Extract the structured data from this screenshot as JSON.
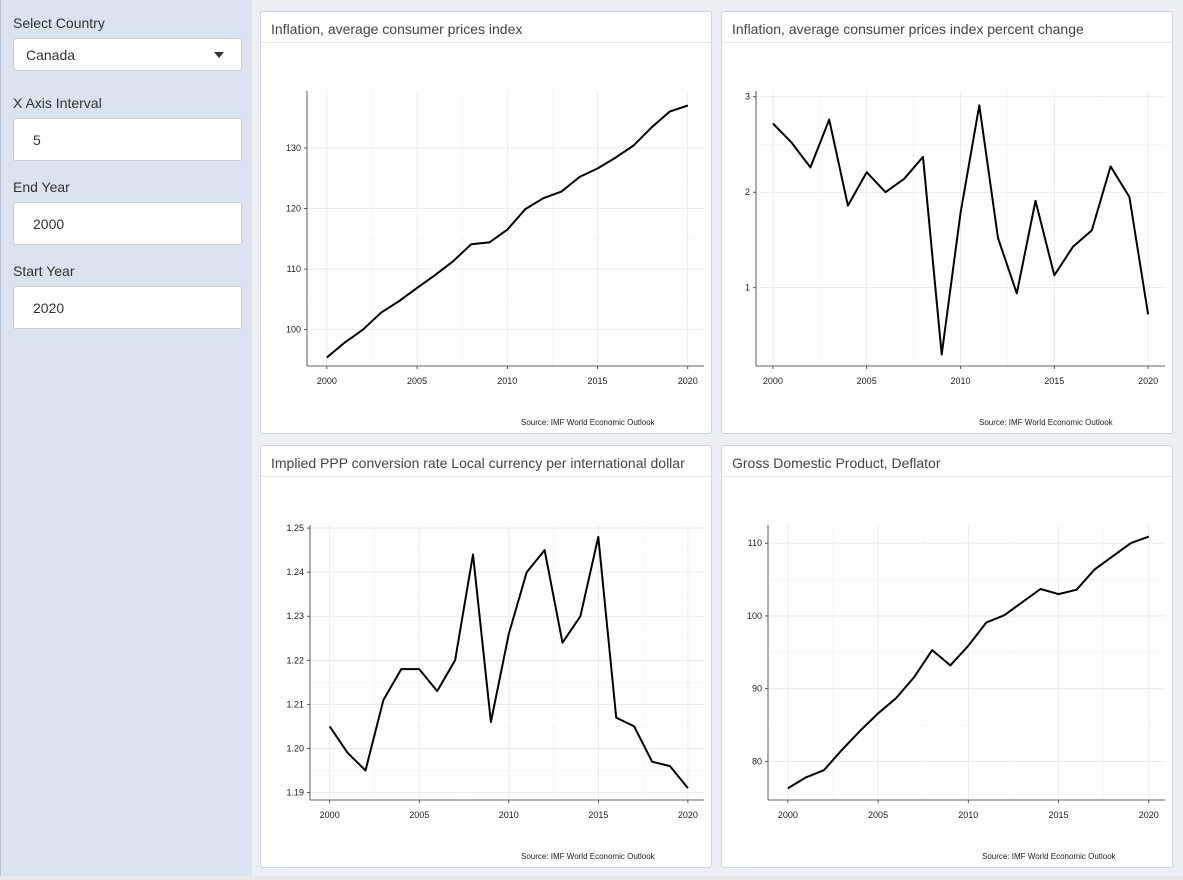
{
  "sidebar": {
    "country_label": "Select Country",
    "country_value": "Canada",
    "interval_label": "X Axis Interval",
    "interval_value": "5",
    "end_label": "End Year",
    "end_value": "2000",
    "start_label": "Start Year",
    "start_value": "2020"
  },
  "charts": {
    "cpi": {
      "title": "Inflation, average consumer prices index",
      "source": "Source: IMF World Economic Outlook"
    },
    "cpi_pct": {
      "title": "Inflation, average consumer prices index percent change",
      "source": "Source: IMF World Economic Outlook"
    },
    "ppp": {
      "title": "Implied PPP conversion rate Local currency per international dollar",
      "source": "Source: IMF World Economic Outlook"
    },
    "gdp": {
      "title": "Gross Domestic Product, Deflator",
      "source": "Source: IMF World Economic Outlook"
    }
  },
  "chart_data": [
    {
      "id": "cpi",
      "type": "line",
      "x": [
        2000,
        2001,
        2002,
        2003,
        2004,
        2005,
        2006,
        2007,
        2008,
        2009,
        2010,
        2011,
        2012,
        2013,
        2014,
        2015,
        2016,
        2017,
        2018,
        2019,
        2020
      ],
      "values": [
        95.4,
        97.9,
        100.0,
        102.8,
        104.7,
        106.9,
        109.0,
        111.3,
        114.1,
        114.4,
        116.5,
        119.9,
        121.7,
        122.8,
        125.2,
        126.6,
        128.4,
        130.4,
        133.4,
        136.0,
        137.0
      ],
      "xlim": [
        1998.9,
        2020.9
      ],
      "ylim": [
        94.0,
        139.4
      ],
      "xticks": [
        2000,
        2005,
        2010,
        2015,
        2020
      ],
      "yticks": [
        100,
        110,
        120,
        130
      ],
      "color": "#000000"
    },
    {
      "id": "cpi_pct",
      "type": "line",
      "x": [
        2000,
        2001,
        2002,
        2003,
        2004,
        2005,
        2006,
        2007,
        2008,
        2009,
        2010,
        2011,
        2012,
        2013,
        2014,
        2015,
        2016,
        2017,
        2018,
        2019,
        2020
      ],
      "values": [
        2.72,
        2.52,
        2.26,
        2.76,
        1.86,
        2.21,
        2.0,
        2.14,
        2.37,
        0.3,
        1.78,
        2.91,
        1.52,
        0.94,
        1.91,
        1.13,
        1.43,
        1.6,
        2.27,
        1.95,
        0.72
      ],
      "xlim": [
        1999.1,
        2020.9
      ],
      "ylim": [
        0.18,
        3.06
      ],
      "xticks": [
        2000,
        2005,
        2010,
        2015,
        2020
      ],
      "yticks": [
        1,
        2,
        3
      ],
      "color": "#000000"
    },
    {
      "id": "ppp",
      "type": "line",
      "x": [
        2000,
        2001,
        2002,
        2003,
        2004,
        2005,
        2006,
        2007,
        2008,
        2009,
        2010,
        2011,
        2012,
        2013,
        2014,
        2015,
        2016,
        2017,
        2018,
        2019,
        2020
      ],
      "values": [
        1.205,
        1.199,
        1.195,
        1.211,
        1.218,
        1.218,
        1.213,
        1.22,
        1.244,
        1.206,
        1.226,
        1.24,
        1.245,
        1.224,
        1.23,
        1.248,
        1.207,
        1.205,
        1.197,
        1.196,
        1.191
      ],
      "xlim": [
        1998.9,
        2020.9
      ],
      "ylim": [
        1.1883,
        1.2507
      ],
      "xticks": [
        2000,
        2005,
        2010,
        2015,
        2020
      ],
      "yticks": [
        1.19,
        1.2,
        1.21,
        1.22,
        1.23,
        1.24,
        1.25
      ],
      "color": "#000000"
    },
    {
      "id": "gdp",
      "type": "line",
      "x": [
        2000,
        2001,
        2002,
        2003,
        2004,
        2005,
        2006,
        2007,
        2008,
        2009,
        2010,
        2011,
        2012,
        2013,
        2014,
        2015,
        2016,
        2017,
        2018,
        2019,
        2020
      ],
      "values": [
        76.3,
        77.8,
        78.8,
        81.6,
        84.2,
        86.6,
        88.7,
        91.6,
        95.3,
        93.2,
        95.9,
        99.1,
        100.1,
        101.9,
        103.7,
        103.0,
        103.6,
        106.4,
        108.2,
        110.0,
        110.9
      ],
      "xlim": [
        1998.9,
        2020.9
      ],
      "ylim": [
        74.7,
        112.5
      ],
      "xticks": [
        2000,
        2005,
        2010,
        2015,
        2020
      ],
      "yticks": [
        80,
        90,
        100,
        110
      ],
      "color": "#000000"
    }
  ]
}
